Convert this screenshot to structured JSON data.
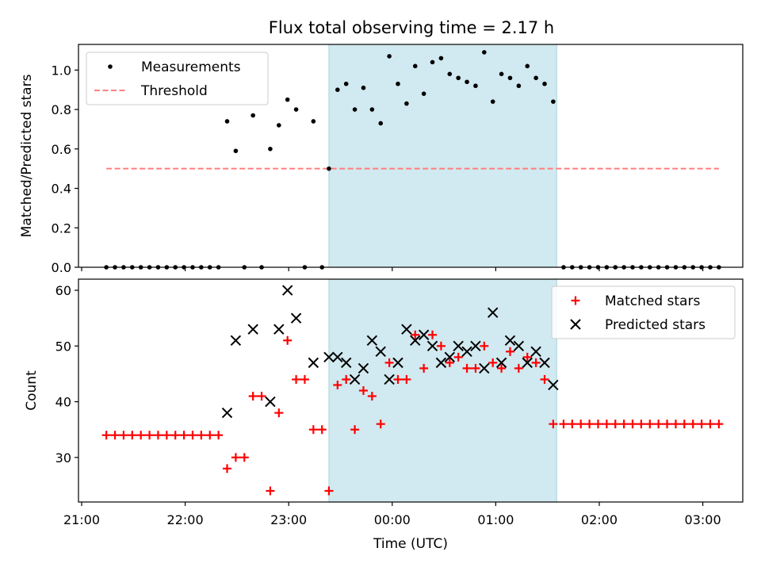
{
  "figure": {
    "title": "Flux total observing time = 2.17 h"
  },
  "chart_data": [
    {
      "type": "scatter",
      "title": "Flux total observing time = 2.17 h",
      "ylabel": "Matched/Predicted stars",
      "xlim": [
        "21:00",
        "03:25"
      ],
      "ylim": [
        0,
        1.13
      ],
      "yticks": [
        0.0,
        0.2,
        0.4,
        0.6,
        0.8,
        1.0
      ],
      "ytick_labels": [
        "0.0",
        "0.2",
        "0.4",
        "0.6",
        "0.8",
        "1.0"
      ],
      "grid": false,
      "legend_position": "upper-left",
      "shaded_interval": {
        "start": "23:24",
        "end": "01:36",
        "color": "#d1e9f0"
      },
      "series": [
        {
          "name": "Measurements",
          "marker": "dot",
          "color": "#000000",
          "x": [
            "21:15",
            "21:20",
            "21:25",
            "21:30",
            "21:35",
            "21:40",
            "21:45",
            "21:50",
            "21:55",
            "22:00",
            "22:05",
            "22:10",
            "22:15",
            "22:20",
            "22:25",
            "22:30",
            "22:35",
            "22:40",
            "22:45",
            "22:50",
            "22:55",
            "23:00",
            "23:05",
            "23:10",
            "23:15",
            "23:20",
            "23:24",
            "23:29",
            "23:34",
            "23:39",
            "23:44",
            "23:49",
            "23:54",
            "23:59",
            "00:04",
            "00:09",
            "00:14",
            "00:19",
            "00:24",
            "00:29",
            "00:34",
            "00:39",
            "00:44",
            "00:49",
            "00:54",
            "00:59",
            "01:04",
            "01:09",
            "01:14",
            "01:19",
            "01:24",
            "01:29",
            "01:34",
            "01:40",
            "01:45",
            "01:50",
            "01:55",
            "02:00",
            "02:05",
            "02:10",
            "02:15",
            "02:20",
            "02:25",
            "02:30",
            "02:35",
            "02:40",
            "02:45",
            "02:50",
            "02:55",
            "03:00",
            "03:05",
            "03:10"
          ],
          "y": [
            0,
            0,
            0,
            0,
            0,
            0,
            0,
            0,
            0,
            0,
            0,
            0,
            0,
            0,
            0.74,
            0.59,
            0,
            0.77,
            0,
            0.6,
            0.72,
            0.85,
            0.8,
            0,
            0.74,
            0,
            0.5,
            0.9,
            0.93,
            0.8,
            0.91,
            0.8,
            0.73,
            1.07,
            0.93,
            0.83,
            1.02,
            0.88,
            1.04,
            1.06,
            0.98,
            0.96,
            0.94,
            0.92,
            1.09,
            0.84,
            0.98,
            0.96,
            0.92,
            1.02,
            0.96,
            0.93,
            0.84,
            0,
            0,
            0,
            0,
            0,
            0,
            0,
            0,
            0,
            0,
            0,
            0,
            0,
            0,
            0,
            0,
            0,
            0,
            0
          ]
        },
        {
          "name": "Threshold",
          "style": "dashed",
          "color": "#ff7f7f",
          "x": [
            "21:15",
            "03:10"
          ],
          "y": [
            0.5,
            0.5
          ]
        }
      ]
    },
    {
      "type": "scatter",
      "xlabel": "Time (UTC)",
      "ylabel": "Count",
      "xlim": [
        "21:00",
        "03:25"
      ],
      "ylim": [
        22,
        62
      ],
      "xticks": [
        "21:00",
        "22:00",
        "23:00",
        "00:00",
        "01:00",
        "02:00",
        "03:00"
      ],
      "yticks": [
        30,
        40,
        50,
        60
      ],
      "ytick_labels": [
        "30",
        "40",
        "50",
        "60"
      ],
      "grid": false,
      "legend_position": "upper-right",
      "shaded_interval": {
        "start": "23:24",
        "end": "01:36",
        "color": "#d1e9f0"
      },
      "series": [
        {
          "name": "Matched stars",
          "marker": "plus",
          "color": "#ff0000",
          "x": [
            "21:15",
            "21:20",
            "21:25",
            "21:30",
            "21:35",
            "21:40",
            "21:45",
            "21:50",
            "21:55",
            "22:00",
            "22:05",
            "22:10",
            "22:15",
            "22:20",
            "22:25",
            "22:30",
            "22:35",
            "22:40",
            "22:45",
            "22:50",
            "22:55",
            "23:00",
            "23:05",
            "23:10",
            "23:15",
            "23:20",
            "23:24",
            "23:29",
            "23:34",
            "23:39",
            "23:44",
            "23:49",
            "23:54",
            "23:59",
            "00:04",
            "00:09",
            "00:14",
            "00:19",
            "00:24",
            "00:29",
            "00:34",
            "00:39",
            "00:44",
            "00:49",
            "00:54",
            "00:59",
            "01:04",
            "01:09",
            "01:14",
            "01:19",
            "01:24",
            "01:29",
            "01:34",
            "01:40",
            "01:45",
            "01:50",
            "01:55",
            "02:00",
            "02:05",
            "02:10",
            "02:15",
            "02:20",
            "02:25",
            "02:30",
            "02:35",
            "02:40",
            "02:45",
            "02:50",
            "02:55",
            "03:00",
            "03:05",
            "03:10"
          ],
          "y": [
            34,
            34,
            34,
            34,
            34,
            34,
            34,
            34,
            34,
            34,
            34,
            34,
            34,
            34,
            28,
            30,
            30,
            41,
            41,
            24,
            38,
            51,
            44,
            44,
            35,
            35,
            24,
            43,
            44,
            35,
            42,
            41,
            36,
            47,
            44,
            44,
            52,
            46,
            52,
            50,
            47,
            48,
            46,
            46,
            50,
            47,
            46,
            49,
            46,
            48,
            47,
            44,
            36,
            36,
            36,
            36,
            36,
            36,
            36,
            36,
            36,
            36,
            36,
            36,
            36,
            36,
            36,
            36,
            36,
            36,
            36,
            36
          ]
        },
        {
          "name": "Predicted stars",
          "marker": "x",
          "color": "#000000",
          "x": [
            "22:25",
            "22:30",
            "22:40",
            "22:50",
            "22:55",
            "23:00",
            "23:05",
            "23:15",
            "23:24",
            "23:29",
            "23:34",
            "23:39",
            "23:44",
            "23:49",
            "23:54",
            "23:59",
            "00:04",
            "00:09",
            "00:14",
            "00:19",
            "00:24",
            "00:29",
            "00:34",
            "00:39",
            "00:44",
            "00:49",
            "00:54",
            "00:59",
            "01:04",
            "01:09",
            "01:14",
            "01:19",
            "01:24",
            "01:29",
            "01:34"
          ],
          "y": [
            38,
            51,
            53,
            40,
            53,
            60,
            55,
            47,
            48,
            48,
            47,
            44,
            46,
            51,
            49,
            44,
            47,
            53,
            51,
            52,
            50,
            47,
            48,
            50,
            49,
            50,
            46,
            56,
            47,
            51,
            50,
            47,
            49,
            47,
            43
          ]
        }
      ]
    }
  ]
}
